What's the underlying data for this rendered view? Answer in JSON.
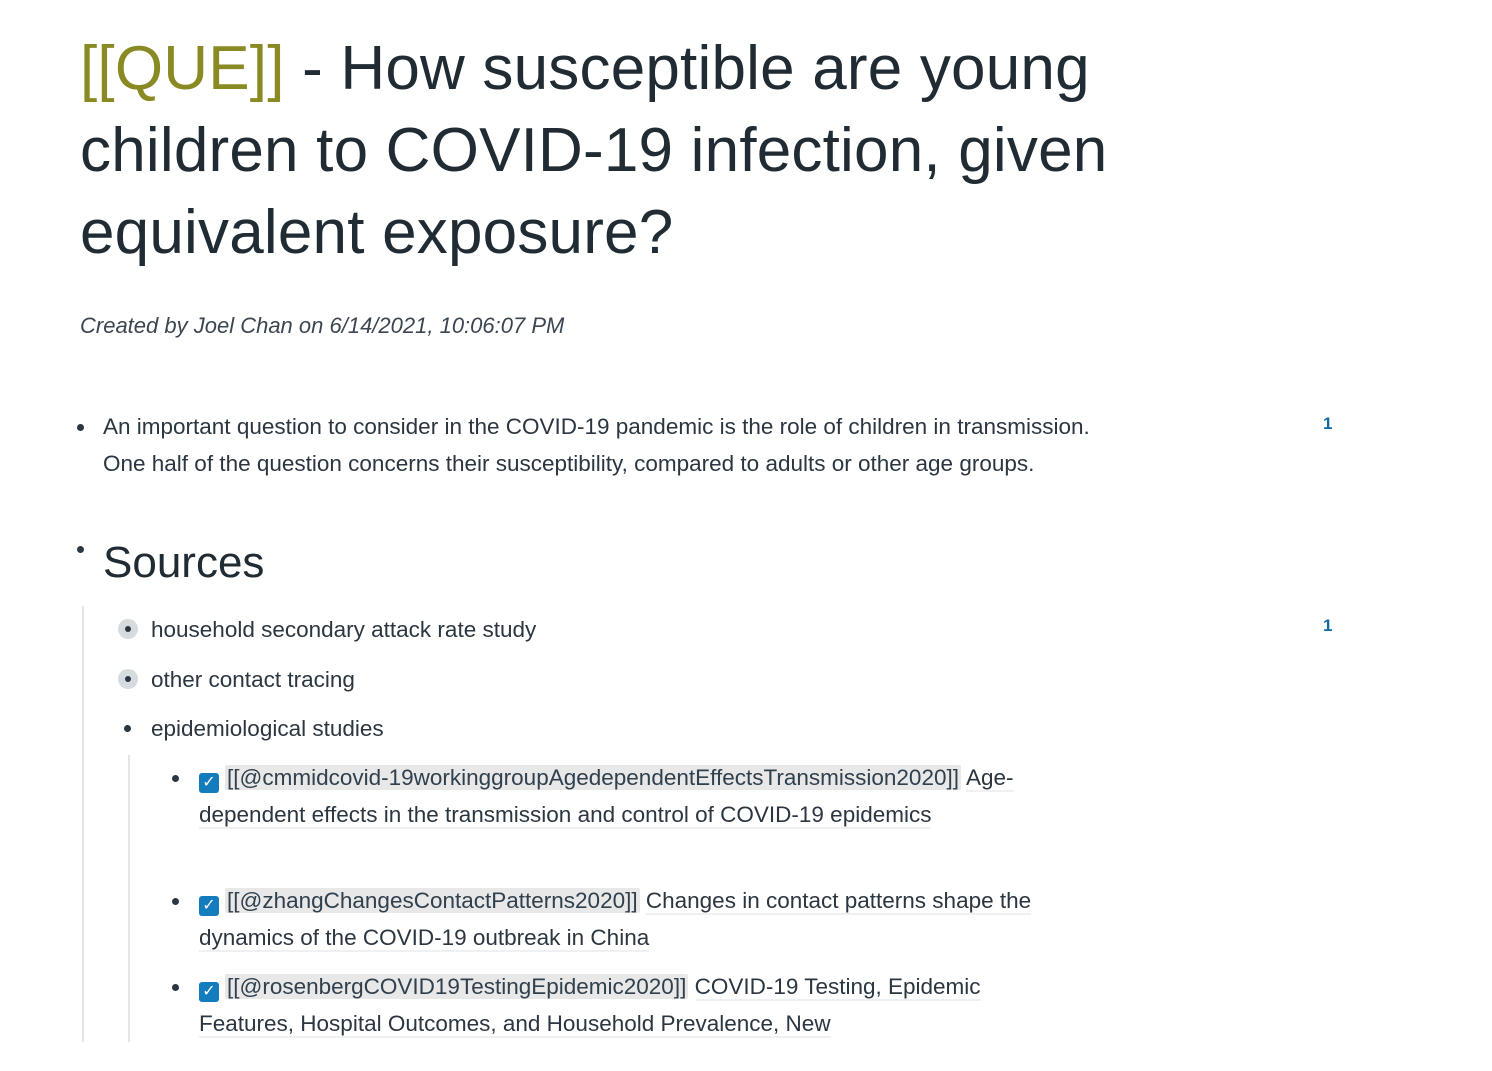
{
  "page": {
    "title_tag": "[[QUE]]",
    "title_rest": " - How susceptible are young children to COVID-19 infection, given equivalent exposure?",
    "meta": "Created by Joel Chan on 6/14/2021, 10:06:07 PM"
  },
  "blocks": {
    "intro": "An important question to consider in the COVID-19 pandemic is the role of children in transmission. One half of the question concerns their susceptibility, compared to adults or other age groups.",
    "intro_refs": "1",
    "sources_heading": "Sources",
    "household": "household secondary attack rate study",
    "household_refs": "1",
    "contact": "other contact tracing",
    "epi": "epidemiological studies"
  },
  "citations": [
    {
      "key": "[[@cmmidcovid-19workinggroupAgedependentEffectsTransmission2020]]",
      "title": "Age-dependent effects in the transmission and control of COVID-19 epidemics",
      "checked": "✓"
    },
    {
      "key": "[[@zhangChangesContactPatterns2020]]",
      "title": "Changes in contact patterns shape the dynamics of the COVID-19 outbreak in China",
      "checked": "✓"
    },
    {
      "key": "[[@rosenbergCOVID19TestingEpidemic2020]]",
      "title": "COVID-19 Testing, Epidemic Features, Hospital Outcomes, and Household Prevalence, New",
      "checked": "✓"
    }
  ]
}
